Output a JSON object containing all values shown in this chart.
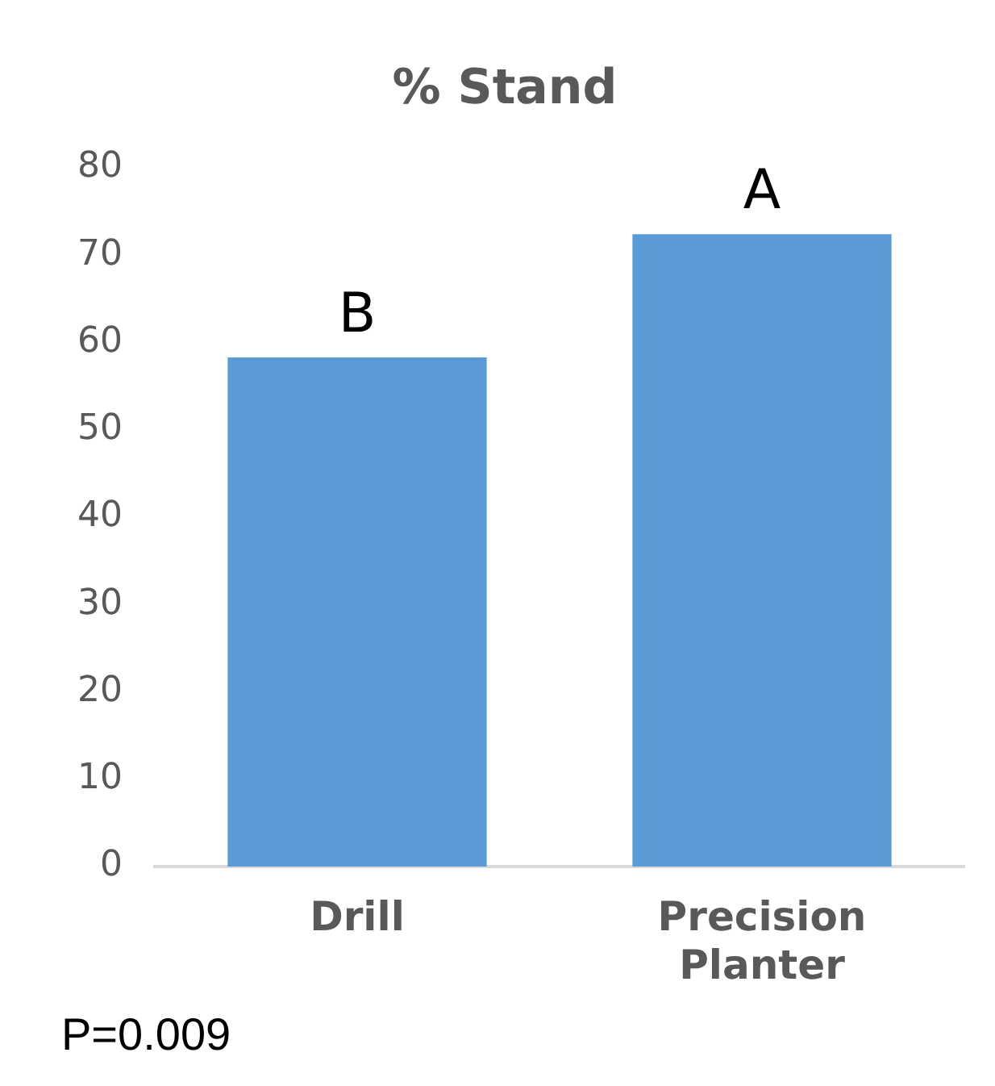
{
  "chart_data": {
    "type": "bar",
    "title": "% Stand",
    "categories": [
      "Drill",
      "Precision Planter"
    ],
    "values": [
      58.3,
      72.4
    ],
    "color": "#5b9bd5",
    "ylim": [
      0,
      80
    ],
    "yticks": [
      0,
      10,
      20,
      30,
      40,
      50,
      60,
      70,
      80
    ],
    "grid": false,
    "legend": false,
    "annotations": [
      {
        "text": "B",
        "x": "Drill",
        "y": 58.3
      },
      {
        "text": "A",
        "x": "Precision Planter",
        "y": 72.4
      },
      "P=0.009"
    ]
  }
}
